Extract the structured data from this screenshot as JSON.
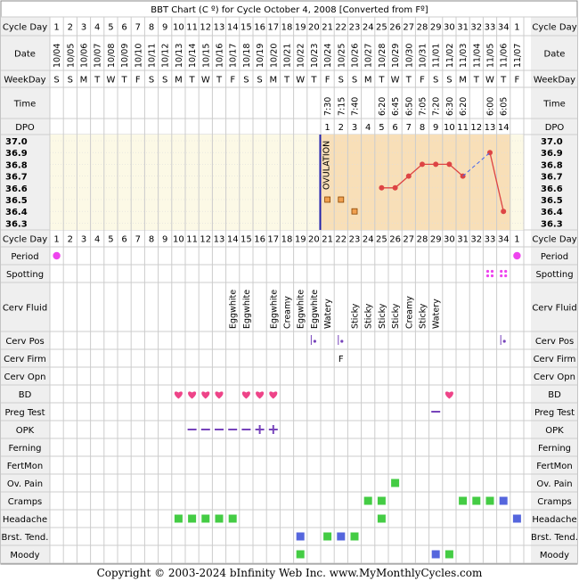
{
  "title": "BBT Chart (C º) for Cycle October 4, 2008  [Converted from Fº]",
  "footer": "Copyright © 2003-2024 bInfinity Web Inc.     www.MyMonthlyCycles.com",
  "row_labels": {
    "cycle_day": "Cycle Day",
    "date": "Date",
    "weekday": "WeekDay",
    "time": "Time",
    "dpo": "DPO",
    "period": "Period",
    "spotting": "Spotting",
    "cerv_fluid": "Cerv Fluid",
    "cerv_pos": "Cerv Pos",
    "cerv_firm": "Cerv Firm",
    "cerv_opn": "Cerv Opn",
    "bd": "BD",
    "preg_test": "Preg Test",
    "opk": "OPK",
    "ferning": "Ferning",
    "fertmon": "FertMon",
    "ov_pain": "Ov. Pain",
    "cramps": "Cramps",
    "headache": "Headache",
    "brst_tend": "Brst. Tend.",
    "moody": "Moody"
  },
  "ovulation_label": "OVULATION",
  "colors": {
    "grid": "#cccccc",
    "border": "#888888",
    "label_bg": "#efefef",
    "chart_bg": "#fcf9e6",
    "post_ov_bg": "#f8dfb8",
    "line": "#dd4444",
    "ov_line": "#2020aa",
    "predicted": "#4466ee",
    "heart": "#ee4488",
    "square_green": "#44cc44",
    "square_blue": "#5566dd",
    "opk": "#7744bb",
    "period": "#ee44ee"
  },
  "cycle_days": [
    "1",
    "2",
    "3",
    "4",
    "5",
    "6",
    "7",
    "8",
    "9",
    "10",
    "11",
    "12",
    "13",
    "14",
    "15",
    "16",
    "17",
    "18",
    "19",
    "20",
    "21",
    "22",
    "23",
    "24",
    "25",
    "26",
    "27",
    "28",
    "29",
    "30",
    "31",
    "32",
    "33",
    "34",
    "1"
  ],
  "dates": [
    "10/04",
    "10/05",
    "10/06",
    "10/07",
    "10/08",
    "10/09",
    "10/10",
    "10/11",
    "10/12",
    "10/13",
    "10/14",
    "10/15",
    "10/16",
    "10/17",
    "10/18",
    "10/19",
    "10/20",
    "10/21",
    "10/22",
    "10/23",
    "10/24",
    "10/25",
    "10/26",
    "10/27",
    "10/28",
    "10/29",
    "10/30",
    "10/31",
    "11/01",
    "11/02",
    "11/03",
    "11/04",
    "11/05",
    "11/06",
    "11/07"
  ],
  "weekdays": [
    "S",
    "S",
    "M",
    "T",
    "W",
    "T",
    "F",
    "S",
    "S",
    "M",
    "T",
    "W",
    "T",
    "F",
    "S",
    "S",
    "M",
    "T",
    "W",
    "T",
    "F",
    "S",
    "S",
    "M",
    "T",
    "W",
    "T",
    "F",
    "S",
    "S",
    "M",
    "T",
    "W",
    "T",
    "F"
  ],
  "times": [
    "",
    "",
    "",
    "",
    "",
    "",
    "",
    "",
    "",
    "",
    "",
    "",
    "",
    "",
    "",
    "",
    "",
    "",
    "",
    "",
    "7:30",
    "7:15",
    "7:40",
    "",
    "6:20",
    "6:45",
    "6:50",
    "7:05",
    "7:20",
    "6:30",
    "6:20",
    "",
    "6:00",
    "6:05",
    ""
  ],
  "dpo": [
    "",
    "",
    "",
    "",
    "",
    "",
    "",
    "",
    "",
    "",
    "",
    "",
    "",
    "",
    "",
    "",
    "",
    "",
    "",
    "",
    "1",
    "2",
    "3",
    "4",
    "5",
    "6",
    "7",
    "8",
    "9",
    "10",
    "11",
    "12",
    "13",
    "14",
    ""
  ],
  "cerv_fluid": [
    "",
    "",
    "",
    "",
    "",
    "",
    "",
    "",
    "",
    "",
    "",
    "",
    "",
    "Eggwhite",
    "Eggwhite",
    "",
    "Eggwhite",
    "Creamy",
    "Eggwhite",
    "Eggwhite",
    "Watery",
    "",
    "Sticky",
    "Sticky",
    "Sticky",
    "Sticky",
    "Creamy",
    "Sticky",
    "Watery",
    "",
    "",
    "",
    "",
    "",
    ""
  ],
  "cerv_firm": [
    "",
    "",
    "",
    "",
    "",
    "",
    "",
    "",
    "",
    "",
    "",
    "",
    "",
    "",
    "",
    "",
    "",
    "",
    "",
    "",
    "",
    "F",
    "",
    "",
    "",
    "",
    "",
    "",
    "",
    "",
    "",
    "",
    "",
    "",
    ""
  ],
  "chart_data": {
    "type": "line",
    "title": "BBT Chart (C º) for Cycle October 4, 2008  [Converted from Fº]",
    "xlabel": "Cycle Day",
    "ylabel": "",
    "ylim": [
      36.25,
      37.05
    ],
    "y_ticks": [
      "37.0",
      "36.9",
      "36.8",
      "36.7",
      "36.6",
      "36.5",
      "36.4",
      "36.3"
    ],
    "ovulation_after_day": 20,
    "series": [
      {
        "type": "line",
        "points": [
          {
            "day": 25,
            "temp": 36.6
          },
          {
            "day": 26,
            "temp": 36.6
          },
          {
            "day": 27,
            "temp": 36.7
          },
          {
            "day": 28,
            "temp": 36.8
          },
          {
            "day": 29,
            "temp": 36.8
          },
          {
            "day": 30,
            "temp": 36.8
          },
          {
            "day": 31,
            "temp": 36.7
          }
        ]
      },
      {
        "type": "line",
        "points": [
          {
            "day": 33,
            "temp": 36.9
          },
          {
            "day": 34,
            "temp": 36.4
          }
        ]
      },
      {
        "type": "dashed",
        "points": [
          {
            "day": 31,
            "temp": 36.7
          },
          {
            "day": 33,
            "temp": 36.9
          }
        ]
      },
      {
        "type": "discarded",
        "points": [
          {
            "day": 21,
            "temp": 36.5
          },
          {
            "day": 22,
            "temp": 36.5
          },
          {
            "day": 23,
            "temp": 36.4
          }
        ]
      }
    ]
  },
  "markers": {
    "period": [
      1,
      35
    ],
    "spotting": [
      33,
      34
    ],
    "cerv_pos": [
      20,
      22,
      34
    ],
    "bd": [
      10,
      11,
      12,
      13,
      15,
      16,
      17,
      30
    ],
    "preg_test": [
      29
    ],
    "opk_neg": [
      11,
      12,
      13,
      14,
      15
    ],
    "opk_pos": [
      16,
      17
    ],
    "ov_pain": [
      26
    ],
    "cramps": [
      {
        "d": 24,
        "c": "square_green"
      },
      {
        "d": 25,
        "c": "square_green"
      },
      {
        "d": 31,
        "c": "square_green"
      },
      {
        "d": 32,
        "c": "square_green"
      },
      {
        "d": 33,
        "c": "square_green"
      },
      {
        "d": 34,
        "c": "square_blue"
      }
    ],
    "headache": [
      {
        "d": 10,
        "c": "square_green"
      },
      {
        "d": 11,
        "c": "square_green"
      },
      {
        "d": 12,
        "c": "square_green"
      },
      {
        "d": 13,
        "c": "square_green"
      },
      {
        "d": 14,
        "c": "square_green"
      },
      {
        "d": 25,
        "c": "square_green"
      },
      {
        "d": 35,
        "c": "square_blue"
      }
    ],
    "brst_tend": [
      {
        "d": 19,
        "c": "square_blue"
      },
      {
        "d": 21,
        "c": "square_green"
      },
      {
        "d": 22,
        "c": "square_blue"
      },
      {
        "d": 23,
        "c": "square_green"
      }
    ],
    "moody": [
      {
        "d": 19,
        "c": "square_green"
      },
      {
        "d": 29,
        "c": "square_blue"
      },
      {
        "d": 30,
        "c": "square_green"
      }
    ]
  }
}
